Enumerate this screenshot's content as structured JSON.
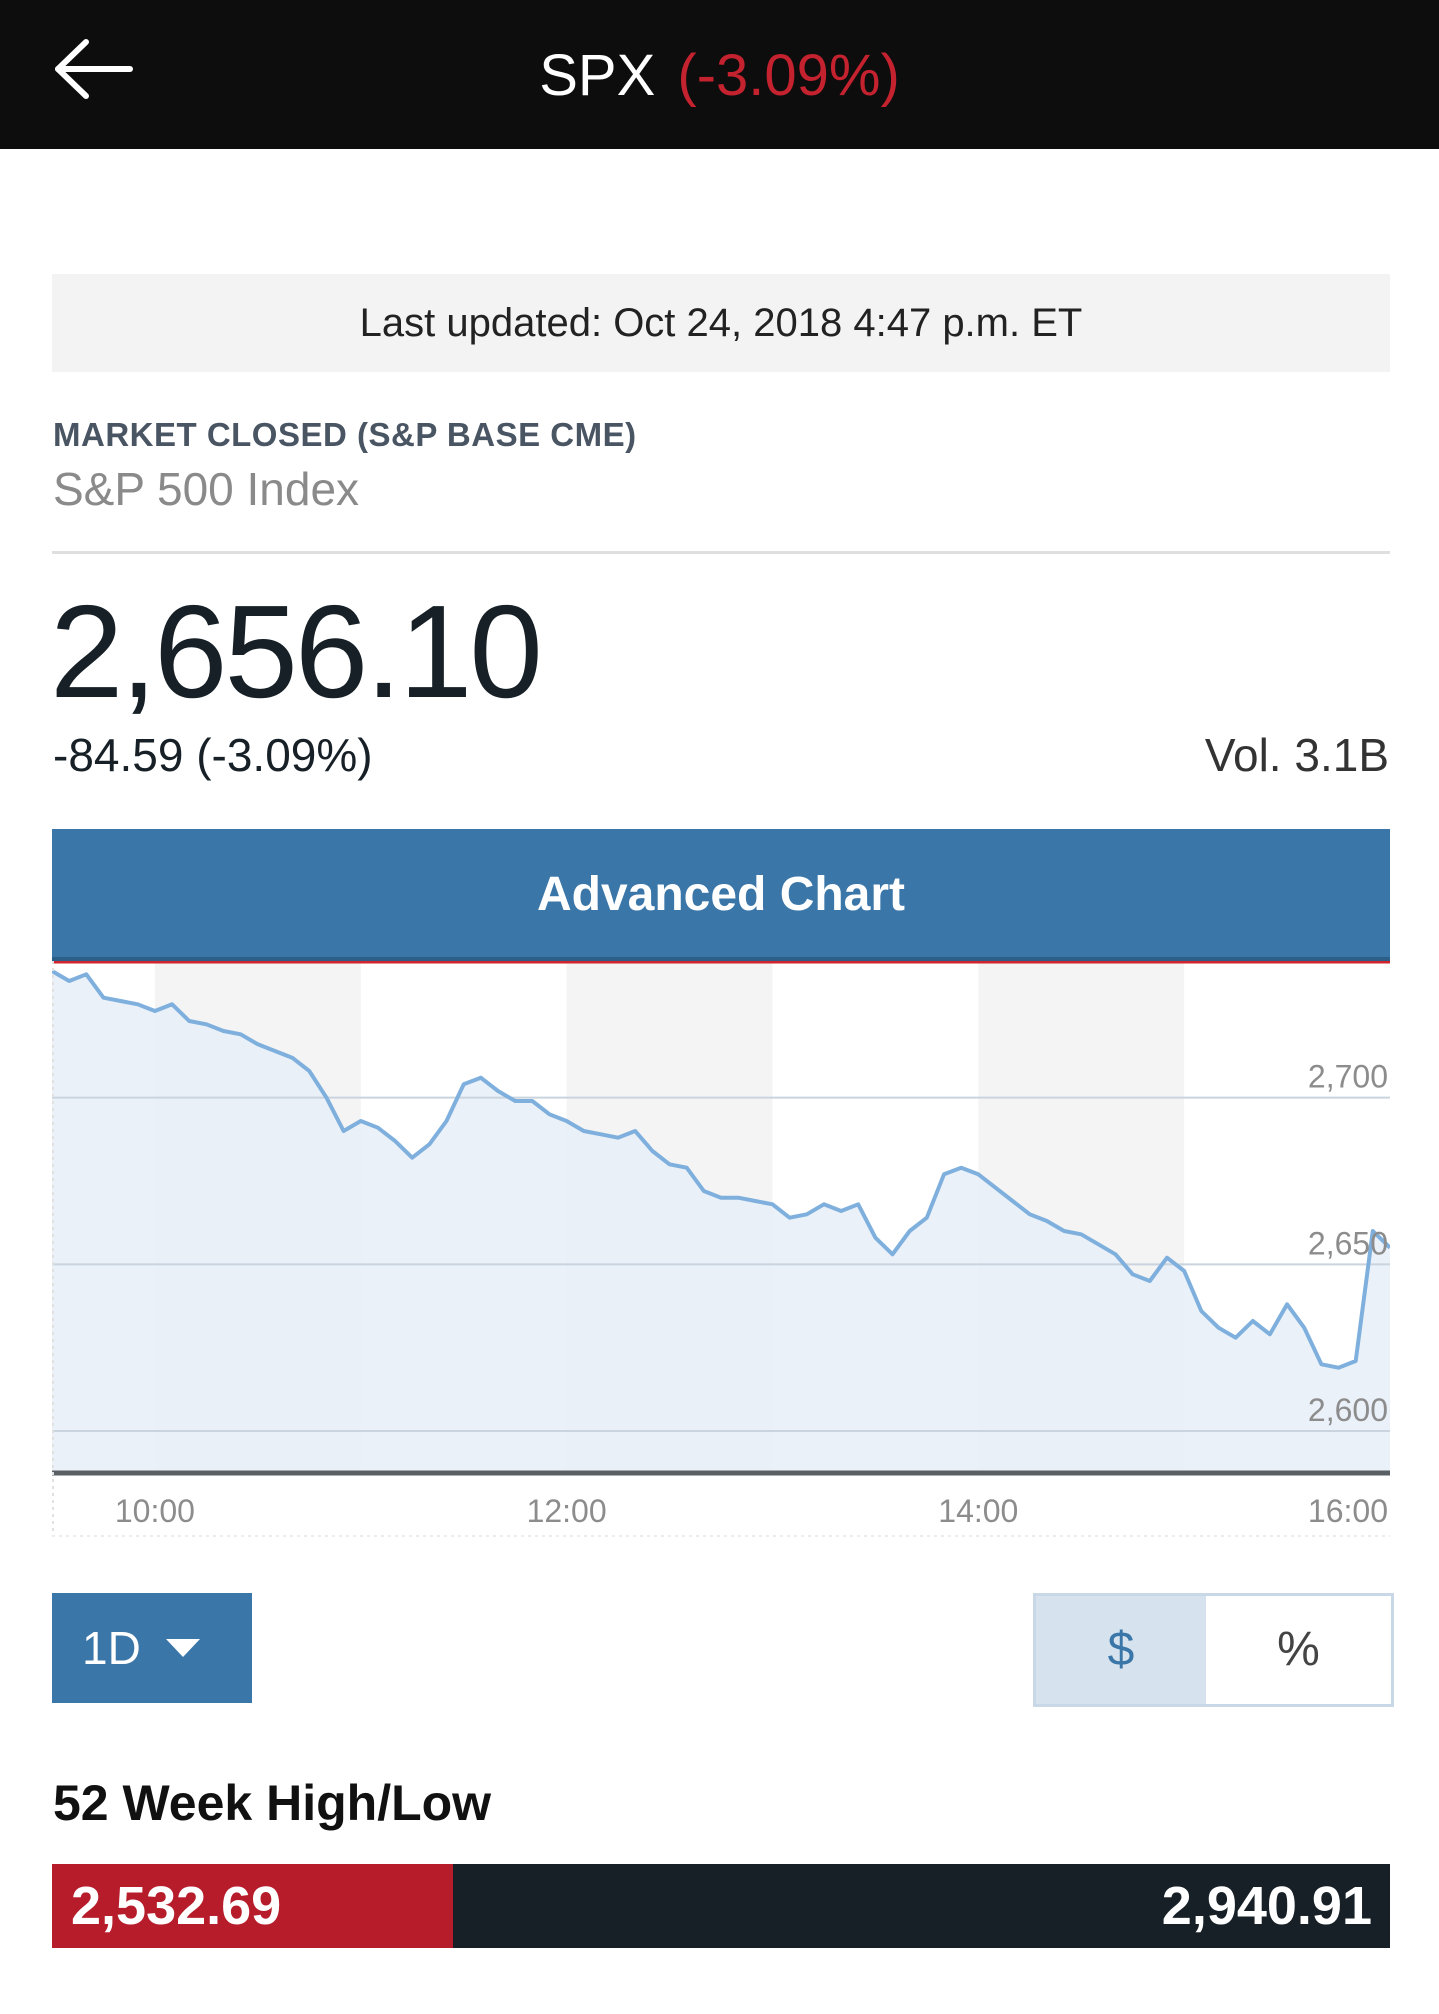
{
  "header": {
    "symbol": "SPX",
    "change_pct": "(-3.09%)",
    "change_color": "#c4222f"
  },
  "last_updated": "Last updated: Oct 24, 2018 4:47 p.m. ET",
  "market_status": "MARKET CLOSED (S&P BASE CME)",
  "index_name": "S&P 500 Index",
  "quote": {
    "price": "2,656.10",
    "change": "-84.59 (-3.09%)",
    "volume": "Vol. 3.1B"
  },
  "advanced_chart_label": "Advanced Chart",
  "chart_data": {
    "type": "area",
    "title": "",
    "xlabel": "",
    "ylabel": "",
    "x_ticks": [
      "10:00",
      "12:00",
      "14:00",
      "16:00"
    ],
    "y_ticks": [
      2600,
      2650,
      2700
    ],
    "y_tick_labels": [
      "2,600",
      "2,650",
      "2,700"
    ],
    "xlim": [
      "9:30",
      "16:00"
    ],
    "ylim": [
      2588,
      2741
    ],
    "previous_close": 2740.69,
    "grid": "horizontal",
    "line_color": "#7fb0dd",
    "fill_color": "#e6eff8",
    "reference_line_color": "#d0242f",
    "series": [
      {
        "x": [
          "9:30",
          "9:35",
          "9:40",
          "9:45",
          "9:50",
          "9:55",
          "10:00",
          "10:05",
          "10:10",
          "10:15",
          "10:20",
          "10:25",
          "10:30",
          "10:35",
          "10:40",
          "10:45",
          "10:50",
          "10:55",
          "11:00",
          "11:05",
          "11:10",
          "11:15",
          "11:20",
          "11:25",
          "11:30",
          "11:35",
          "11:40",
          "11:45",
          "11:50",
          "11:55",
          "12:00",
          "12:05",
          "12:10",
          "12:15",
          "12:20",
          "12:25",
          "12:30",
          "12:35",
          "12:40",
          "12:45",
          "12:50",
          "12:55",
          "13:00",
          "13:05",
          "13:10",
          "13:15",
          "13:20",
          "13:25",
          "13:30",
          "13:35",
          "13:40",
          "13:45",
          "13:50",
          "13:55",
          "14:00",
          "14:05",
          "14:10",
          "14:15",
          "14:20",
          "14:25",
          "14:30",
          "14:35",
          "14:40",
          "14:45",
          "14:50",
          "14:55",
          "15:00",
          "15:05",
          "15:10",
          "15:15",
          "15:20",
          "15:25",
          "15:30",
          "15:35",
          "15:40",
          "15:45",
          "15:50",
          "15:55",
          "16:00"
        ],
        "values": [
          2738,
          2735,
          2737,
          2730,
          2729,
          2728,
          2726,
          2728,
          2723,
          2722,
          2720,
          2719,
          2716,
          2714,
          2712,
          2708,
          2700,
          2690,
          2693,
          2691,
          2687,
          2682,
          2686,
          2693,
          2704,
          2706,
          2702,
          2699,
          2699,
          2695,
          2693,
          2690,
          2689,
          2688,
          2690,
          2684,
          2680,
          2679,
          2672,
          2670,
          2670,
          2669,
          2668,
          2664,
          2665,
          2668,
          2666,
          2668,
          2658,
          2653,
          2660,
          2664,
          2677,
          2679,
          2677,
          2673,
          2669,
          2665,
          2663,
          2660,
          2659,
          2656,
          2653,
          2647,
          2645,
          2652,
          2648,
          2636,
          2631,
          2628,
          2633,
          2629,
          2638,
          2631,
          2620,
          2619,
          2621,
          2660,
          2655
        ]
      }
    ]
  },
  "controls": {
    "range_label": "1D",
    "dollar_label": "$",
    "percent_label": "%",
    "selected_unit": "$"
  },
  "high_low": {
    "title": "52 Week High/Low",
    "low": "2,532.69",
    "high": "2,940.91",
    "current_position_fraction": 0.3,
    "low_color": "#b71c2a",
    "high_color": "#162026"
  }
}
